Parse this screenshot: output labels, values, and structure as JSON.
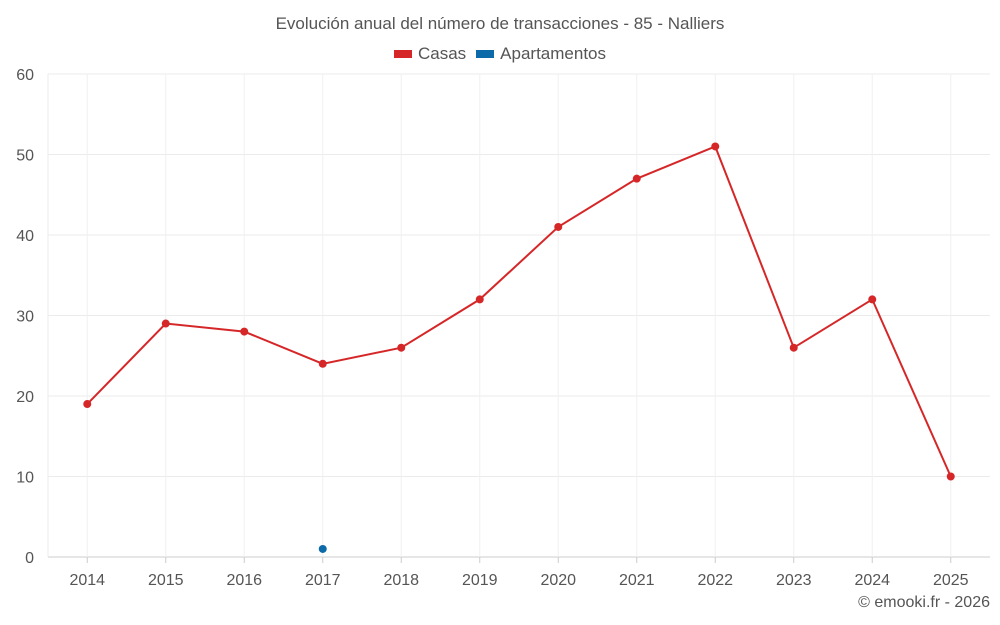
{
  "chart_data": {
    "type": "line",
    "title": "Evolución anual del número de transacciones - 85 - Nalliers",
    "categories": [
      "2014",
      "2015",
      "2016",
      "2017",
      "2018",
      "2019",
      "2020",
      "2021",
      "2022",
      "2023",
      "2024",
      "2025"
    ],
    "ylim": [
      0,
      60
    ],
    "yticks": [
      "0",
      "10",
      "20",
      "30",
      "40",
      "50",
      "60"
    ],
    "grid": true,
    "legend_position": "top-center",
    "series": [
      {
        "name": "Casas",
        "color": "#d62728",
        "values": [
          19,
          29,
          28,
          24,
          26,
          32,
          41,
          47,
          51,
          26,
          32,
          10
        ]
      },
      {
        "name": "Apartamentos",
        "color": "#0d6aa8",
        "values": [
          null,
          null,
          null,
          1,
          null,
          null,
          null,
          null,
          null,
          null,
          null,
          null
        ]
      }
    ]
  },
  "credit": "© emooki.fr - 2026"
}
